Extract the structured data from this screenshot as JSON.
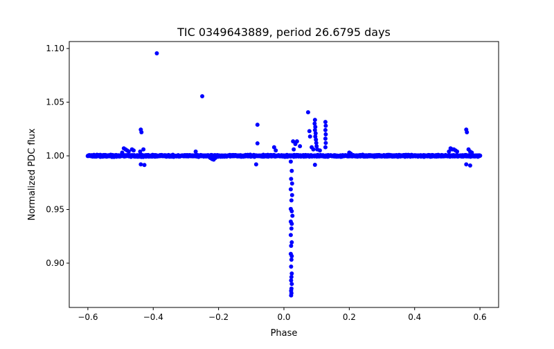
{
  "chart_data": {
    "type": "scatter",
    "title": "TIC 0349643889, period 26.6795 days",
    "xlabel": "Phase",
    "ylabel": "Normalized PDC flux",
    "xlim": [
      -0.657,
      0.657
    ],
    "ylim": [
      0.8587,
      1.1065
    ],
    "xticks": [
      -0.6,
      -0.4,
      -0.2,
      0.0,
      0.2,
      0.4,
      0.6
    ],
    "xtick_labels": [
      "−0.6",
      "−0.4",
      "−0.2",
      "0.0",
      "0.2",
      "0.4",
      "0.6"
    ],
    "yticks": [
      0.9,
      0.95,
      1.0,
      1.05,
      1.1
    ],
    "ytick_labels": [
      "0.90",
      "0.95",
      "1.00",
      "1.05",
      "1.10"
    ],
    "grid": false,
    "color": "#0000ff",
    "baseline": {
      "x_range": [
        -0.6,
        0.6
      ],
      "flux": 1.0,
      "scatter": 0.0008,
      "step": 0.0015
    },
    "points": [
      [
        0.021,
        0.9946
      ],
      [
        0.024,
        0.986
      ],
      [
        0.022,
        0.9785
      ],
      [
        0.025,
        0.9742
      ],
      [
        0.021,
        0.9688
      ],
      [
        0.025,
        0.9634
      ],
      [
        0.023,
        0.9585
      ],
      [
        0.021,
        0.9505
      ],
      [
        0.024,
        0.9484
      ],
      [
        0.026,
        0.9441
      ],
      [
        0.021,
        0.9387
      ],
      [
        0.024,
        0.9366
      ],
      [
        0.023,
        0.9323
      ],
      [
        0.021,
        0.9262
      ],
      [
        0.024,
        0.9194
      ],
      [
        0.022,
        0.9161
      ],
      [
        0.021,
        0.9086
      ],
      [
        0.024,
        0.9065
      ],
      [
        0.023,
        0.9032
      ],
      [
        0.022,
        0.8968
      ],
      [
        0.024,
        0.8903
      ],
      [
        0.023,
        0.8871
      ],
      [
        0.022,
        0.8839
      ],
      [
        0.024,
        0.8806
      ],
      [
        0.023,
        0.8763
      ],
      [
        0.022,
        0.8742
      ],
      [
        0.023,
        0.872
      ],
      [
        0.022,
        0.8699
      ],
      [
        0.095,
        1.0335
      ],
      [
        0.094,
        1.03
      ],
      [
        0.096,
        1.027
      ],
      [
        0.095,
        1.024
      ],
      [
        0.097,
        1.021
      ],
      [
        0.096,
        1.018
      ],
      [
        0.098,
        1.015
      ],
      [
        0.099,
        1.012
      ],
      [
        0.1,
        1.009
      ],
      [
        0.102,
        1.006
      ],
      [
        0.127,
        1.0316
      ],
      [
        0.128,
        1.028
      ],
      [
        0.127,
        1.024
      ],
      [
        0.128,
        1.02
      ],
      [
        0.127,
        1.016
      ],
      [
        0.128,
        1.012
      ],
      [
        0.127,
        1.008
      ],
      [
        0.074,
        1.0406
      ],
      [
        0.078,
        1.023
      ],
      [
        0.08,
        1.018
      ],
      [
        0.085,
        1.008
      ],
      [
        0.09,
        1.006
      ],
      [
        0.095,
        0.9916
      ],
      [
        0.11,
        1.005
      ],
      [
        -0.081,
        1.029
      ],
      [
        -0.081,
        1.0116
      ],
      [
        -0.085,
        0.992
      ],
      [
        -0.03,
        1.008
      ],
      [
        -0.025,
        1.005
      ],
      [
        0.028,
        1.0135
      ],
      [
        0.04,
        1.0135
      ],
      [
        0.035,
        1.011
      ],
      [
        0.049,
        1.009
      ],
      [
        0.03,
        1.006
      ],
      [
        -0.389,
        1.0955
      ],
      [
        -0.25,
        1.0555
      ],
      [
        -0.438,
        1.0245
      ],
      [
        -0.436,
        1.022
      ],
      [
        -0.438,
        0.992
      ],
      [
        -0.427,
        0.9915
      ],
      [
        -0.43,
        1.006
      ],
      [
        -0.44,
        1.004
      ],
      [
        -0.49,
        1.007
      ],
      [
        -0.485,
        1.006
      ],
      [
        -0.48,
        1.005
      ],
      [
        -0.475,
        1.004
      ],
      [
        -0.495,
        1.003
      ],
      [
        -0.465,
        1.006
      ],
      [
        -0.46,
        1.005
      ],
      [
        -0.22,
        0.997
      ],
      [
        -0.225,
        0.998
      ],
      [
        -0.215,
        0.9965
      ],
      [
        -0.21,
        0.998
      ],
      [
        -0.27,
        1.004
      ],
      [
        0.558,
        1.0245
      ],
      [
        0.56,
        1.022
      ],
      [
        0.558,
        0.992
      ],
      [
        0.57,
        0.991
      ],
      [
        0.565,
        1.006
      ],
      [
        0.57,
        1.004
      ],
      [
        0.575,
        1.003
      ],
      [
        0.51,
        1.007
      ],
      [
        0.515,
        1.006
      ],
      [
        0.52,
        1.006
      ],
      [
        0.525,
        1.005
      ],
      [
        0.53,
        1.004
      ],
      [
        0.505,
        1.004
      ],
      [
        0.2,
        1.003
      ],
      [
        0.205,
        1.002
      ]
    ]
  }
}
